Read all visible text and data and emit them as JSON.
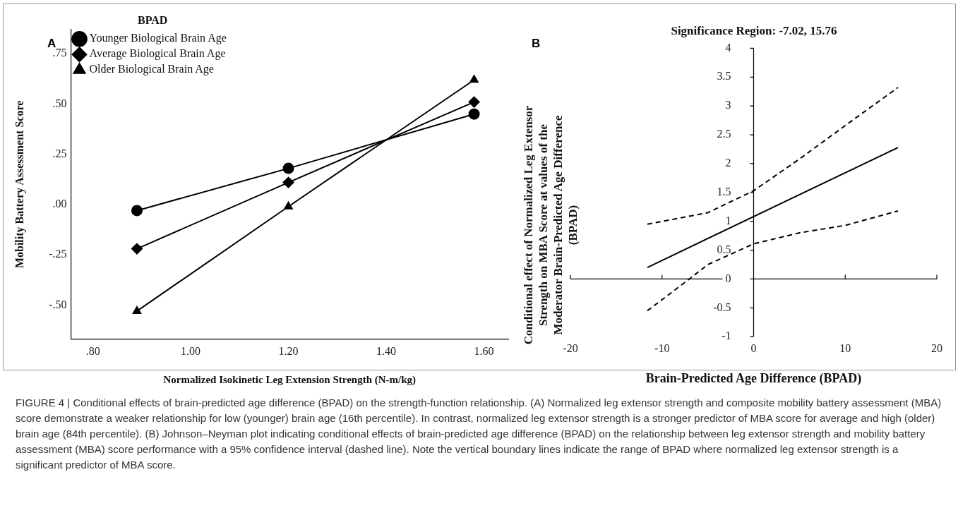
{
  "chart_data": [
    {
      "type": "line",
      "xlabel": "Normalized Isokinetic Leg Extension Strength (N-m/kg)",
      "ylabel": "Mobility Battery Assessment Score",
      "legend_title": "BPAD",
      "legend": "top left",
      "annotations": [
        "A",
        "FIGURE 4 | Conditional effects of brain-predicted age difference (BPAD) on the strength-function relationship. (A) Normalized leg extensor strength and composite mobility battery assessment (MBA) score demonstrate a weaker relationship for low (younger) brain age (16th percentile). In contrast, normalized leg extensor strength is a stronger predictor of MBA score for average and high (older) brain age (84th percentile). (B) Johnson–Neyman plot indicating conditional effects of brain-predicted age difference (BPAD) on the relationship between leg extensor strength and mobility battery assessment (MBA) score performance with a 95% confidence interval (dashed line). Note the vertical boundary lines indicate the range of BPAD where normalized leg extensor strength is a significant predictor of MBA score."
      ],
      "x": [
        0.89,
        1.2,
        1.58
      ],
      "xlim": [
        0.755,
        1.65
      ],
      "xticks": [
        {
          "value": 0.8,
          "label": ".80"
        },
        {
          "value": 1.0,
          "label": "1.00"
        },
        {
          "value": 1.2,
          "label": "1.20"
        },
        {
          "value": 1.4,
          "label": "1.40"
        },
        {
          "value": 1.6,
          "label": "1.60"
        }
      ],
      "ylim": [
        -0.67,
        0.87
      ],
      "yticks": [
        {
          "value": -0.5,
          "label": "-.50"
        },
        {
          "value": -0.25,
          "label": "-.25"
        },
        {
          "value": 0,
          "label": ".00"
        },
        {
          "value": 0.25,
          "label": ".25"
        },
        {
          "value": 0.5,
          "label": ".50"
        },
        {
          "value": 0.75,
          "label": ".75"
        }
      ],
      "series": [
        {
          "name": "Younger Biological Brain Age",
          "color": "#000000",
          "marker": "circle",
          "values": [
            -0.03,
            0.18,
            0.45
          ]
        },
        {
          "name": "Average Biological Brain Age",
          "color": "#000000",
          "marker": "diamond",
          "values": [
            -0.22,
            0.11,
            0.51
          ]
        },
        {
          "name": "Older Biological Brain Age",
          "color": "#000000",
          "marker": "triangle",
          "values": [
            -0.53,
            -0.01,
            0.62
          ]
        }
      ]
    },
    {
      "type": "line",
      "title": "Significance Region: -7.02, 15.76",
      "xlabel": "Brain-Predicted Age Difference (BPAD)",
      "ylabel": "Conditional effect of Normalized Leg Extensor Strength on MBA Score at values of the Moderator Brain-Predicted Age Difference (BPAD)",
      "legend": false,
      "marker": "none",
      "annotations": [
        "B"
      ],
      "xlim": [
        -20,
        20
      ],
      "xticks": [
        -20,
        -10,
        0,
        10,
        20
      ],
      "ylim": [
        -1,
        4
      ],
      "yticks": [
        -1,
        -0.5,
        0,
        0.5,
        1,
        1.5,
        2,
        2.5,
        3,
        3.5,
        4
      ],
      "series": [
        {
          "color": "#000000",
          "line_style": "solid",
          "x": [
            -11.6,
            15.76
          ],
          "values": [
            0.2,
            2.28
          ]
        },
        {
          "color": "#000000",
          "line_style": "dashed",
          "x": [
            -11.6,
            -5,
            0,
            5,
            10,
            15.76
          ],
          "values": [
            0.95,
            1.15,
            1.53,
            2.08,
            2.66,
            3.32
          ]
        },
        {
          "color": "#000000",
          "line_style": "dashed",
          "x": [
            -11.6,
            -7.02,
            -5,
            0,
            5,
            10,
            15.76
          ],
          "values": [
            -0.55,
            0,
            0.25,
            0.61,
            0.8,
            0.93,
            1.18
          ]
        }
      ]
    }
  ]
}
